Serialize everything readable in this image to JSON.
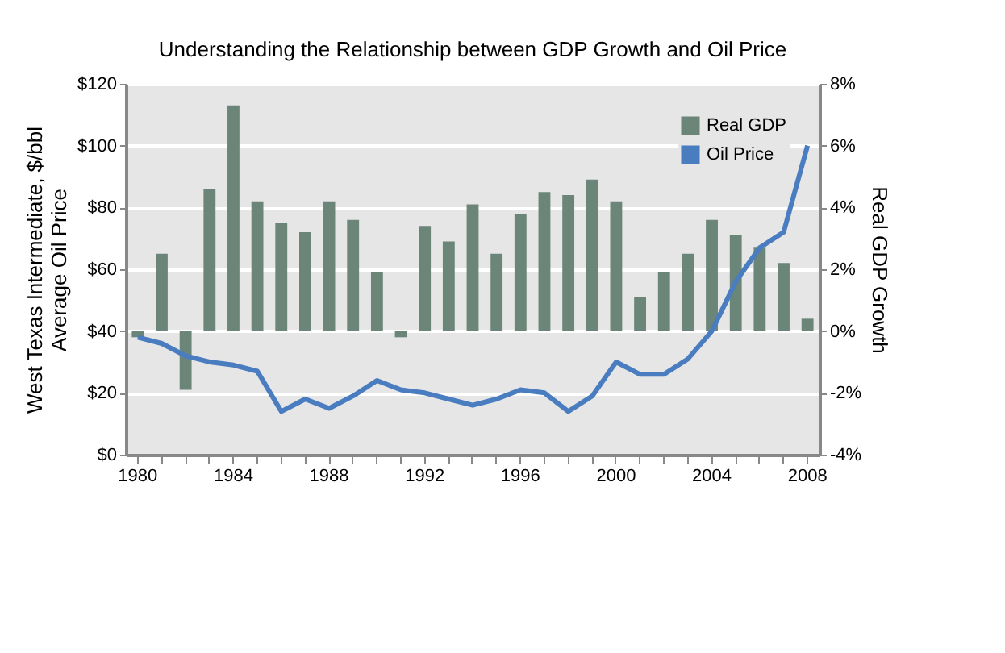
{
  "chart_data": {
    "type": "bar",
    "title": "Understanding the Relationship between GDP Growth and Oil Price",
    "ylabel": "West Texas Intermediate, $/bbl\nAverage Oil Price",
    "y2label": "Real GDP Growth",
    "categories": [
      "1980",
      null,
      null,
      null,
      "1984",
      null,
      null,
      null,
      "1988",
      null,
      null,
      null,
      "1992",
      null,
      null,
      null,
      "1996",
      null,
      null,
      null,
      "2000",
      null,
      null,
      null,
      "2004",
      null,
      null,
      null,
      "2008"
    ],
    "series": [
      {
        "name": "Real GDP",
        "axis": "y2",
        "color": "#6b8578",
        "values": [
          -0.2,
          2.5,
          -1.9,
          4.6,
          7.3,
          4.2,
          3.5,
          3.2,
          4.2,
          3.6,
          1.9,
          -0.2,
          3.4,
          2.9,
          4.1,
          2.5,
          3.8,
          4.5,
          4.4,
          4.9,
          4.2,
          1.1,
          1.9,
          2.5,
          3.6,
          3.1,
          2.7,
          2.2,
          0.4
        ]
      },
      {
        "name": "Oil Price",
        "type": "line",
        "color": "#4a7cc0",
        "values": [
          38,
          36,
          32,
          30,
          29,
          27,
          14,
          18,
          15,
          19,
          24,
          21,
          20,
          18,
          16,
          18,
          21,
          20,
          14,
          19,
          30,
          26,
          26,
          31,
          40,
          56,
          67,
          72,
          100
        ]
      }
    ],
    "ylim": [
      0,
      120
    ],
    "yticks": [
      {
        "value": 0,
        "label": "$0"
      },
      {
        "value": 20,
        "label": "$20"
      },
      {
        "value": 40,
        "label": "$40"
      },
      {
        "value": 60,
        "label": "$60"
      },
      {
        "value": 80,
        "label": "$80"
      },
      {
        "value": 100,
        "label": "$100"
      },
      {
        "value": 120,
        "label": "$120"
      }
    ],
    "y2lim": [
      -4,
      8
    ],
    "y2ticks": [
      {
        "value": -4,
        "label": "-4%"
      },
      {
        "value": -2,
        "label": "-2%"
      },
      {
        "value": 0,
        "label": "0%"
      },
      {
        "value": 2,
        "label": "2%"
      },
      {
        "value": 4,
        "label": "4%"
      },
      {
        "value": 6,
        "label": "6%"
      },
      {
        "value": 8,
        "label": "8%"
      }
    ],
    "grid": "y",
    "legend": "top right",
    "marker": "none",
    "line_style": "solid"
  }
}
